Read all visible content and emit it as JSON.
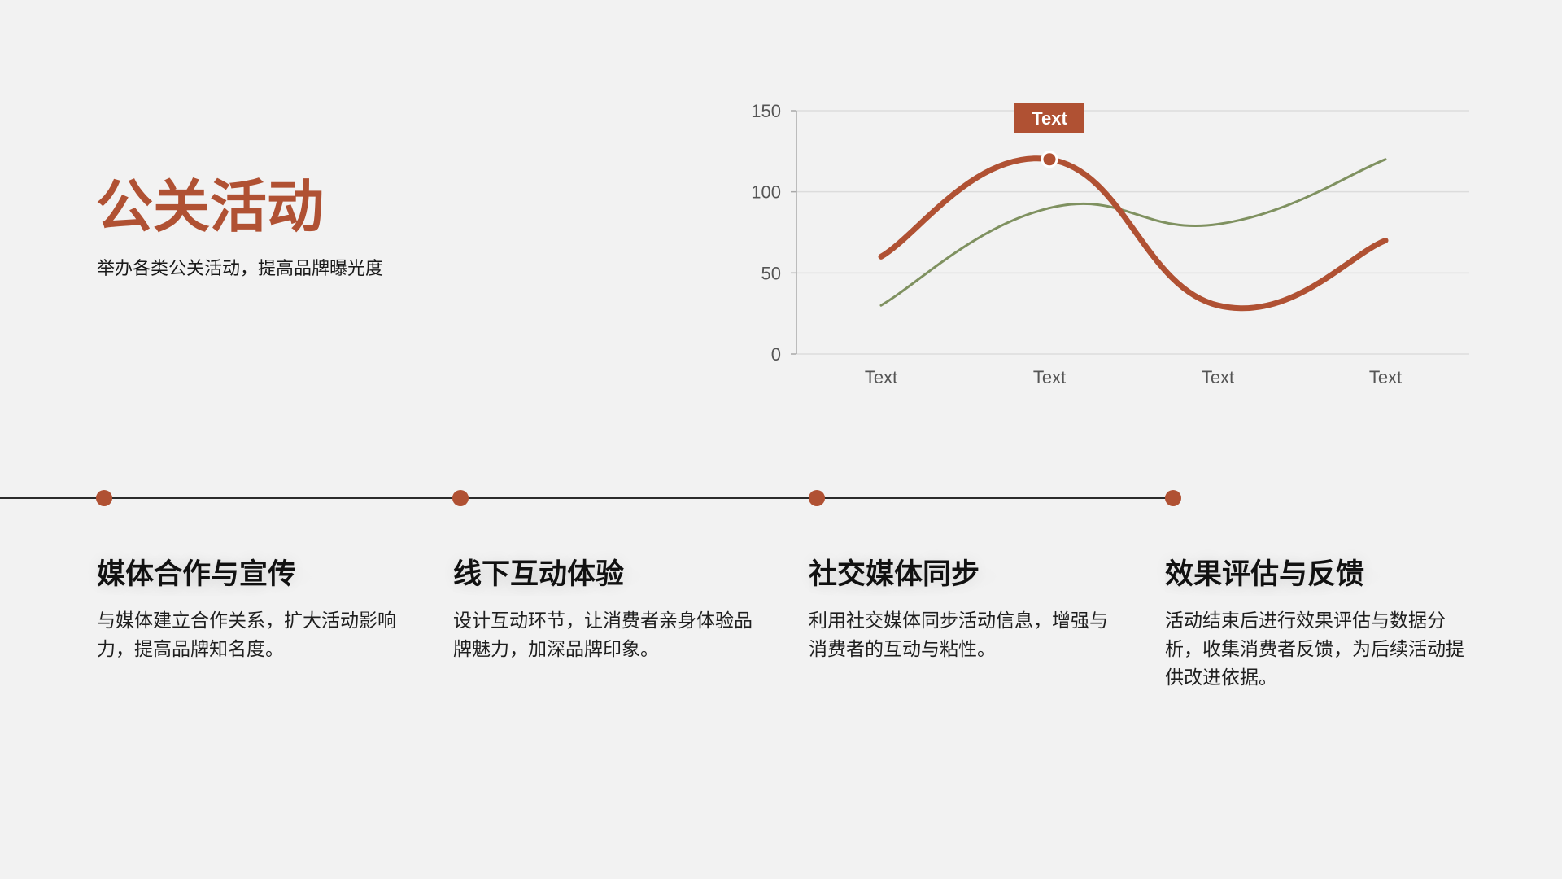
{
  "header": {
    "title": "公关活动",
    "subtitle": "举办各类公关活动，提高品牌曝光度"
  },
  "colors": {
    "accent": "#b05133",
    "secondary": "#7f9160",
    "background": "#f2f2f2",
    "timeline": "#2b2b2b"
  },
  "chart_data": {
    "type": "line",
    "title": "",
    "xlabel": "",
    "ylabel": "",
    "categories": [
      "Text",
      "Text",
      "Text",
      "Text"
    ],
    "series": [
      {
        "name": "Series 1",
        "color": "#b05133",
        "values": [
          60,
          120,
          30,
          70
        ],
        "smooth": true,
        "line_width": 7
      },
      {
        "name": "Series 2",
        "color": "#7f9160",
        "values": [
          30,
          90,
          80,
          120
        ],
        "smooth": true,
        "line_width": 3
      }
    ],
    "ylim": [
      0,
      150
    ],
    "yticks": [
      "0",
      "50",
      "100",
      "150"
    ],
    "grid": true,
    "legend": "none",
    "annotations": [
      {
        "text": "Text",
        "series": 0,
        "index": 1,
        "value": 120
      }
    ]
  },
  "timeline": {
    "items": [
      {
        "heading": "媒体合作与宣传",
        "desc": "与媒体建立合作关系，扩大活动影响力，提高品牌知名度。"
      },
      {
        "heading": "线下互动体验",
        "desc": "设计互动环节，让消费者亲身体验品牌魅力，加深品牌印象。"
      },
      {
        "heading": "社交媒体同步",
        "desc": "利用社交媒体同步活动信息，增强与消费者的互动与粘性。"
      },
      {
        "heading": "效果评估与反馈",
        "desc": "活动结束后进行效果评估与数据分析，收集消费者反馈，为后续活动提供改进依据。"
      }
    ]
  }
}
